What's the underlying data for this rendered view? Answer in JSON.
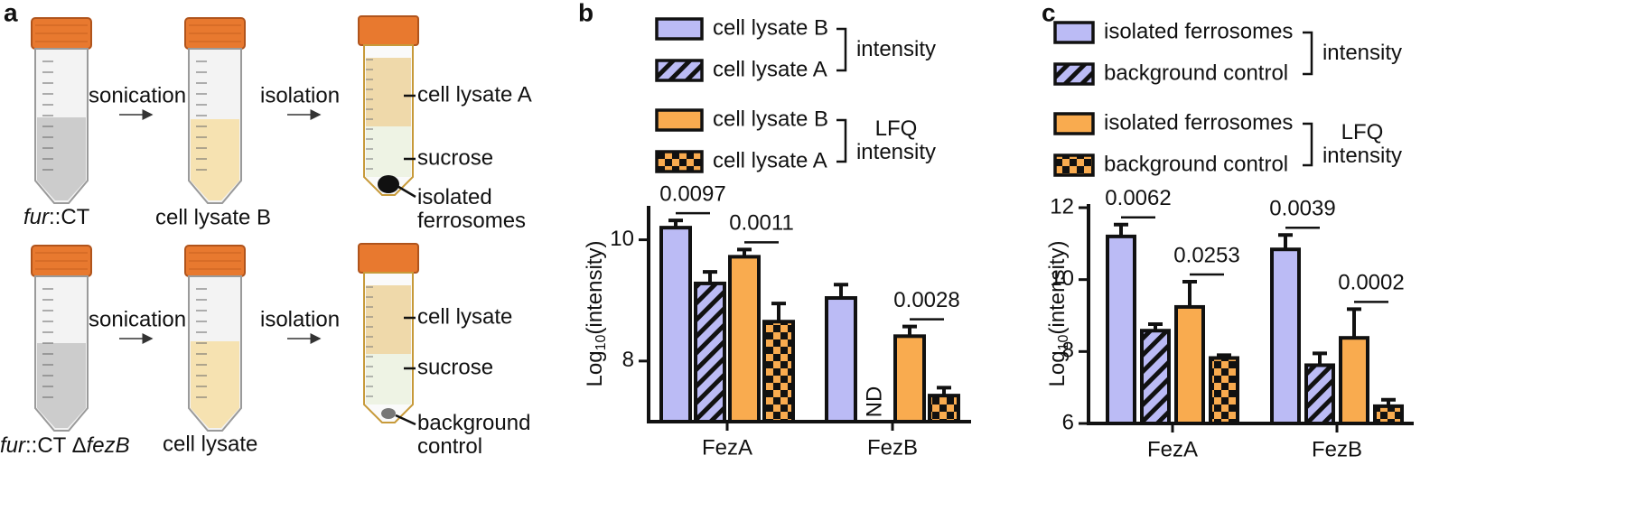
{
  "panel_a": {
    "label": "a",
    "rows": [
      {
        "strain": [
          {
            "text": "fur",
            "italic": true
          },
          {
            "text": "::CT",
            "italic": false
          }
        ],
        "step1": "sonication",
        "lysate": "cell lysate B",
        "step2": "isolation",
        "layers": [
          "cell lysate A",
          "sucrose",
          "isolated ferrosomes"
        ]
      },
      {
        "strain": [
          {
            "text": "fur",
            "italic": true
          },
          {
            "text": "::CT Δ",
            "italic": false
          },
          {
            "text": "fezB",
            "italic": true
          }
        ],
        "step1": "sonication",
        "lysate": "cell lysate",
        "step2": "isolation",
        "layers": [
          "cell lysate",
          "sucrose",
          "background control"
        ]
      }
    ]
  },
  "chart_data": [
    {
      "type": "bar",
      "panel_label": "b",
      "ylabel": [
        "Log",
        "10",
        "(intensity)"
      ],
      "categories": [
        "FezA",
        "FezB"
      ],
      "ylim": [
        7,
        10.5
      ],
      "yticks": [
        8,
        10
      ],
      "series": [
        {
          "name": "cell lysate B",
          "group": "intensity",
          "color": "#bbbbf5",
          "values": [
            10.2,
            9.04
          ],
          "errors": [
            0.12,
            0.22
          ]
        },
        {
          "name": "cell lysate A",
          "group": "intensity",
          "color": "#bbbbf5",
          "pattern": "hatch",
          "values": [
            9.28,
            null
          ],
          "value_labels": [
            null,
            "ND"
          ],
          "errors": [
            0.19,
            null
          ]
        },
        {
          "name": "cell lysate B",
          "group": "LFQ intensity",
          "color": "#f9ab4f",
          "values": [
            9.72,
            8.41
          ],
          "errors": [
            0.12,
            0.16
          ]
        },
        {
          "name": "cell lysate A",
          "group": "LFQ intensity",
          "color": "#f9ab4f",
          "pattern": "checker",
          "values": [
            8.65,
            7.43
          ],
          "errors": [
            0.3,
            0.13
          ]
        }
      ],
      "annotations": [
        {
          "text": "0.0097",
          "category": 0,
          "series": [
            0,
            1
          ]
        },
        {
          "text": "0.0011",
          "category": 0,
          "series": [
            2,
            3
          ]
        },
        {
          "text": "0.0028",
          "category": 1,
          "series": [
            2,
            3
          ]
        }
      ]
    },
    {
      "type": "bar",
      "panel_label": "c",
      "ylabel": [
        "Log",
        "10",
        "(intensity)"
      ],
      "categories": [
        "FezA",
        "FezB"
      ],
      "ylim": [
        6,
        12
      ],
      "yticks": [
        6,
        8,
        10,
        12
      ],
      "series": [
        {
          "name": "isolated ferrosomes",
          "group": "intensity",
          "color": "#bbbbf5",
          "values": [
            11.2,
            10.84
          ],
          "errors": [
            0.33,
            0.4
          ]
        },
        {
          "name": "background control",
          "group": "intensity",
          "color": "#bbbbf5",
          "pattern": "hatch",
          "values": [
            8.58,
            7.62
          ],
          "errors": [
            0.18,
            0.33
          ]
        },
        {
          "name": "isolated ferrosomes",
          "group": "LFQ intensity",
          "color": "#f9ab4f",
          "values": [
            9.24,
            8.38
          ],
          "errors": [
            0.7,
            0.8
          ]
        },
        {
          "name": "background control",
          "group": "LFQ intensity",
          "color": "#f9ab4f",
          "pattern": "checker",
          "values": [
            7.82,
            6.48
          ],
          "errors": [
            0.08,
            0.18
          ]
        }
      ],
      "annotations": [
        {
          "text": "0.0062",
          "category": 0,
          "series": [
            0,
            1
          ]
        },
        {
          "text": "0.0253",
          "category": 0,
          "series": [
            2,
            3
          ]
        },
        {
          "text": "0.0039",
          "category": 1,
          "series": [
            0,
            1
          ]
        },
        {
          "text": "0.0002",
          "category": 1,
          "series": [
            2,
            3
          ]
        }
      ]
    }
  ]
}
